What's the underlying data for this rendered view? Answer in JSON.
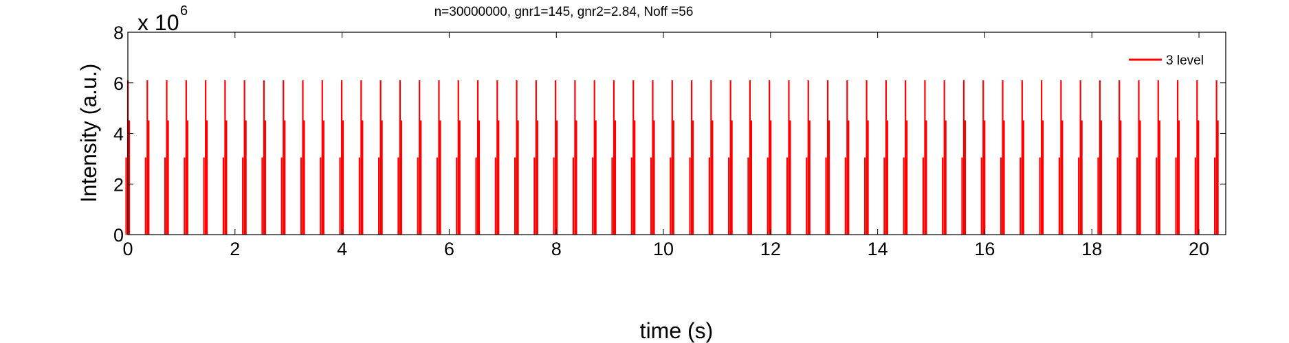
{
  "chart_data": {
    "type": "line",
    "title": "n=30000000, gnr1=145, gnr2=2.84, Noff =56",
    "xlabel": "time (s)",
    "ylabel": "Intensity (a.u.)",
    "xlim": [
      0,
      20.5
    ],
    "ylim": [
      0,
      8000000
    ],
    "y_exponent_label": "x 10",
    "y_exponent_power": "6",
    "x_ticks": [
      0,
      2,
      4,
      6,
      8,
      10,
      12,
      14,
      16,
      18,
      20
    ],
    "y_ticks": [
      0,
      2,
      4,
      6,
      8
    ],
    "grid": false,
    "legend_position": "top-right",
    "series": [
      {
        "name": "3 level",
        "color": "#ff0000",
        "pulse_start_time": 0.0,
        "pulse_period": 0.363,
        "pulse_count": 57,
        "pulse_peak": 6100000
      }
    ]
  }
}
